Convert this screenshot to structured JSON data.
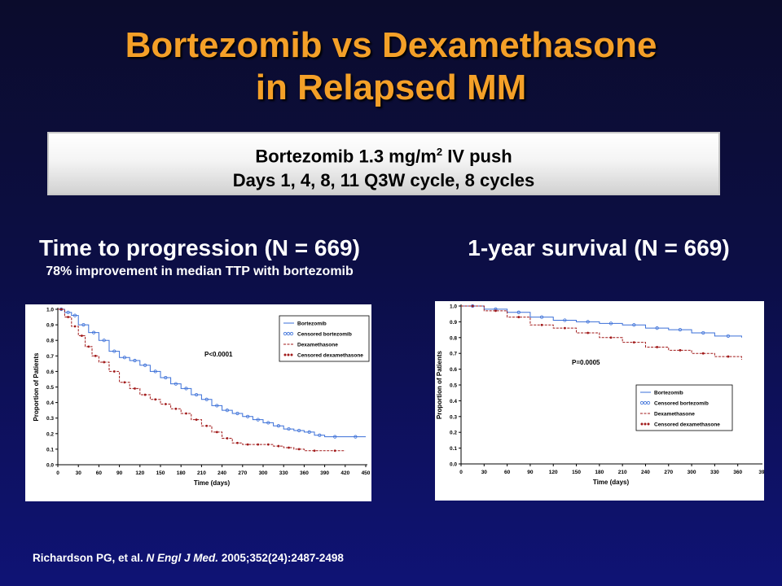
{
  "slide": {
    "title_line1": "Bortezomib vs Dexamethasone",
    "title_line2": "in Relapsed MM",
    "regimen_line1_a": "Bortezomib  1.3 mg/m",
    "regimen_line1_sup": "2",
    "regimen_line1_b": " IV push",
    "regimen_line2": "Days 1, 4, 8, 11 Q3W cycle, 8 cycles",
    "left_heading": "Time to progression (N = 669)",
    "left_subheading": "78% improvement in median TTP with bortezomib",
    "right_heading": "1-year survival (N = 669)",
    "citation_a": "Richardson PG, et al. ",
    "citation_journal": "N Engl J Med.",
    "citation_b": " 2005;352(24):2487-2498"
  },
  "colors": {
    "bortezomib": "#3a6fd8",
    "dexamethasone": "#a11a1a",
    "title": "#f4a028"
  },
  "chart_data": [
    {
      "type": "line",
      "title": "Time to progression (N = 669)",
      "xlabel": "Time (days)",
      "ylabel": "Proportion of Patients",
      "xlim": [
        0,
        450
      ],
      "ylim": [
        0,
        1.0
      ],
      "xticks": [
        0,
        30,
        60,
        90,
        120,
        150,
        180,
        210,
        240,
        270,
        300,
        330,
        360,
        390,
        420,
        450
      ],
      "yticks": [
        0.0,
        0.1,
        0.2,
        0.3,
        0.4,
        0.5,
        0.6,
        0.7,
        0.8,
        0.9,
        1.0
      ],
      "annotation": "P<0.0001",
      "legend": [
        "Bortezomib",
        "Censored bortezomib",
        "Dexamethasone",
        "Censored dexamethasone"
      ],
      "legend_position": "top-right",
      "series": [
        {
          "name": "Bortezomib",
          "x": [
            0,
            10,
            20,
            30,
            45,
            60,
            75,
            90,
            105,
            120,
            135,
            150,
            165,
            180,
            195,
            210,
            225,
            240,
            255,
            270,
            285,
            300,
            315,
            330,
            345,
            360,
            375,
            390,
            420,
            450
          ],
          "y": [
            1.0,
            0.98,
            0.96,
            0.9,
            0.85,
            0.8,
            0.73,
            0.69,
            0.67,
            0.64,
            0.6,
            0.56,
            0.52,
            0.49,
            0.45,
            0.42,
            0.38,
            0.35,
            0.33,
            0.31,
            0.29,
            0.27,
            0.25,
            0.23,
            0.22,
            0.21,
            0.19,
            0.18,
            0.18,
            0.18
          ]
        },
        {
          "name": "Dexamethasone",
          "x": [
            0,
            10,
            20,
            30,
            40,
            50,
            60,
            75,
            90,
            105,
            120,
            135,
            150,
            165,
            180,
            195,
            210,
            225,
            240,
            255,
            270,
            285,
            300,
            315,
            330,
            345,
            360,
            390,
            420
          ],
          "y": [
            1.0,
            0.95,
            0.89,
            0.83,
            0.76,
            0.7,
            0.66,
            0.6,
            0.53,
            0.49,
            0.45,
            0.42,
            0.39,
            0.36,
            0.33,
            0.29,
            0.25,
            0.21,
            0.17,
            0.14,
            0.13,
            0.13,
            0.13,
            0.12,
            0.11,
            0.1,
            0.09,
            0.09,
            0.09
          ]
        }
      ]
    },
    {
      "type": "line",
      "title": "1-year survival (N = 669)",
      "xlabel": "Time (days)",
      "ylabel": "Proportion of Patients",
      "xlim": [
        0,
        390
      ],
      "ylim": [
        0,
        1.0
      ],
      "xticks": [
        0,
        30,
        60,
        90,
        120,
        150,
        180,
        210,
        240,
        270,
        300,
        330,
        360
      ],
      "xticks_last_label": "39",
      "yticks": [
        0.0,
        0.1,
        0.2,
        0.3,
        0.4,
        0.5,
        0.6,
        0.7,
        0.8,
        0.9,
        1.0
      ],
      "annotation": "P=0.0005",
      "legend": [
        "Bortezomib",
        "Censored bortezomib",
        "Dexamethasone",
        "Censored dexamethasone"
      ],
      "legend_position": "center-right",
      "series": [
        {
          "name": "Bortezomib",
          "x": [
            0,
            30,
            60,
            90,
            120,
            150,
            180,
            210,
            240,
            270,
            300,
            330,
            365
          ],
          "y": [
            1.0,
            0.98,
            0.96,
            0.93,
            0.91,
            0.9,
            0.89,
            0.88,
            0.86,
            0.85,
            0.83,
            0.81,
            0.8
          ]
        },
        {
          "name": "Dexamethasone",
          "x": [
            0,
            30,
            60,
            90,
            120,
            150,
            180,
            210,
            240,
            270,
            300,
            330,
            365
          ],
          "y": [
            1.0,
            0.97,
            0.93,
            0.88,
            0.86,
            0.83,
            0.8,
            0.77,
            0.74,
            0.72,
            0.7,
            0.68,
            0.66
          ]
        }
      ]
    }
  ]
}
